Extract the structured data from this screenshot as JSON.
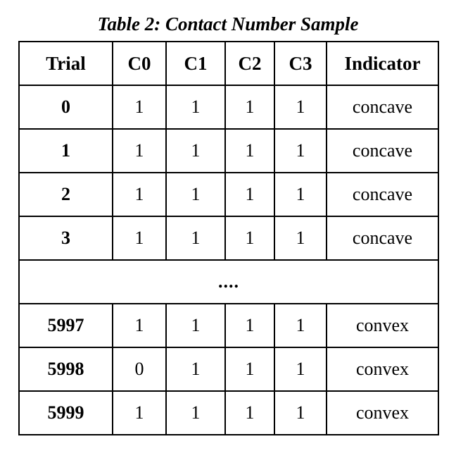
{
  "caption": "Table 2: Contact Number Sample",
  "headers": [
    "Trial",
    "C0",
    "C1",
    "C2",
    "C3",
    "Indicator"
  ],
  "rows_top": [
    {
      "trial": "0",
      "c0": "1",
      "c1": "1",
      "c2": "1",
      "c3": "1",
      "indicator": "concave"
    },
    {
      "trial": "1",
      "c0": "1",
      "c1": "1",
      "c2": "1",
      "c3": "1",
      "indicator": "concave"
    },
    {
      "trial": "2",
      "c0": "1",
      "c1": "1",
      "c2": "1",
      "c3": "1",
      "indicator": "concave"
    },
    {
      "trial": "3",
      "c0": "1",
      "c1": "1",
      "c2": "1",
      "c3": "1",
      "indicator": "concave"
    }
  ],
  "ellipsis": "....",
  "rows_bottom": [
    {
      "trial": "5997",
      "c0": "1",
      "c1": "1",
      "c2": "1",
      "c3": "1",
      "indicator": "convex"
    },
    {
      "trial": "5998",
      "c0": "0",
      "c1": "1",
      "c2": "1",
      "c3": "1",
      "indicator": "convex"
    },
    {
      "trial": "5999",
      "c0": "1",
      "c1": "1",
      "c2": "1",
      "c3": "1",
      "indicator": "convex"
    }
  ]
}
